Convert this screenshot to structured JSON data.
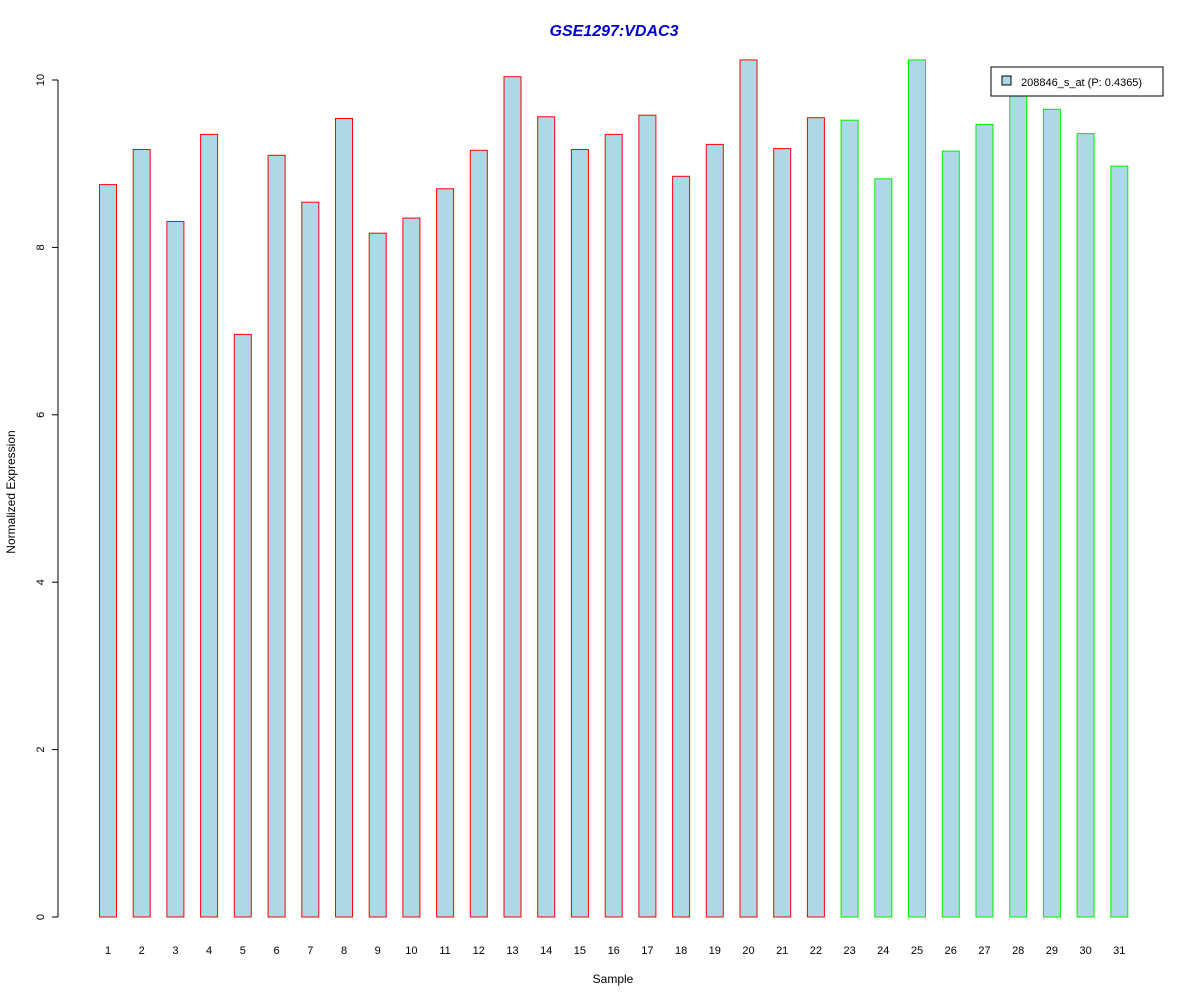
{
  "chart_data": {
    "type": "bar",
    "title": "GSE1297:VDAC3",
    "xlabel": "Sample",
    "ylabel": "Normalized Expression",
    "ylim": [
      0,
      10.5
    ],
    "yticks": [
      0,
      2,
      4,
      6,
      8,
      10
    ],
    "grid": false,
    "legend": {
      "placement": "top-right",
      "entries": [
        {
          "label": "208846_s_at (P: 0.4365)",
          "color": "#add8e6"
        }
      ]
    },
    "categories": [
      "1",
      "2",
      "3",
      "4",
      "5",
      "6",
      "7",
      "8",
      "9",
      "10",
      "11",
      "12",
      "13",
      "14",
      "15",
      "16",
      "17",
      "18",
      "19",
      "20",
      "21",
      "22",
      "23",
      "24",
      "25",
      "26",
      "27",
      "28",
      "29",
      "30",
      "31"
    ],
    "values": [
      8.75,
      9.17,
      8.31,
      9.35,
      6.96,
      9.1,
      8.54,
      9.54,
      8.17,
      8.35,
      8.7,
      9.16,
      10.04,
      9.56,
      9.17,
      9.35,
      9.58,
      8.85,
      9.23,
      10.24,
      9.18,
      9.55,
      9.52,
      8.82,
      10.24,
      9.15,
      9.47,
      9.86,
      9.65,
      9.36,
      8.97
    ],
    "group_colors": [
      "#ff0000",
      "#ff0000",
      "#ff0000",
      "#ff0000",
      "#ff0000",
      "#ff0000",
      "#ff0000",
      "#ff0000",
      "#ff0000",
      "#ff0000",
      "#ff0000",
      "#ff0000",
      "#ff0000",
      "#ff0000",
      "#ff0000",
      "#ff0000",
      "#ff0000",
      "#ff0000",
      "#ff0000",
      "#ff0000",
      "#ff0000",
      "#ff0000",
      "#00ee00",
      "#00ee00",
      "#00ee00",
      "#00ee00",
      "#00ee00",
      "#00ee00",
      "#00ee00",
      "#00ee00",
      "#00ee00"
    ],
    "bar_fill": "#add8e6"
  }
}
